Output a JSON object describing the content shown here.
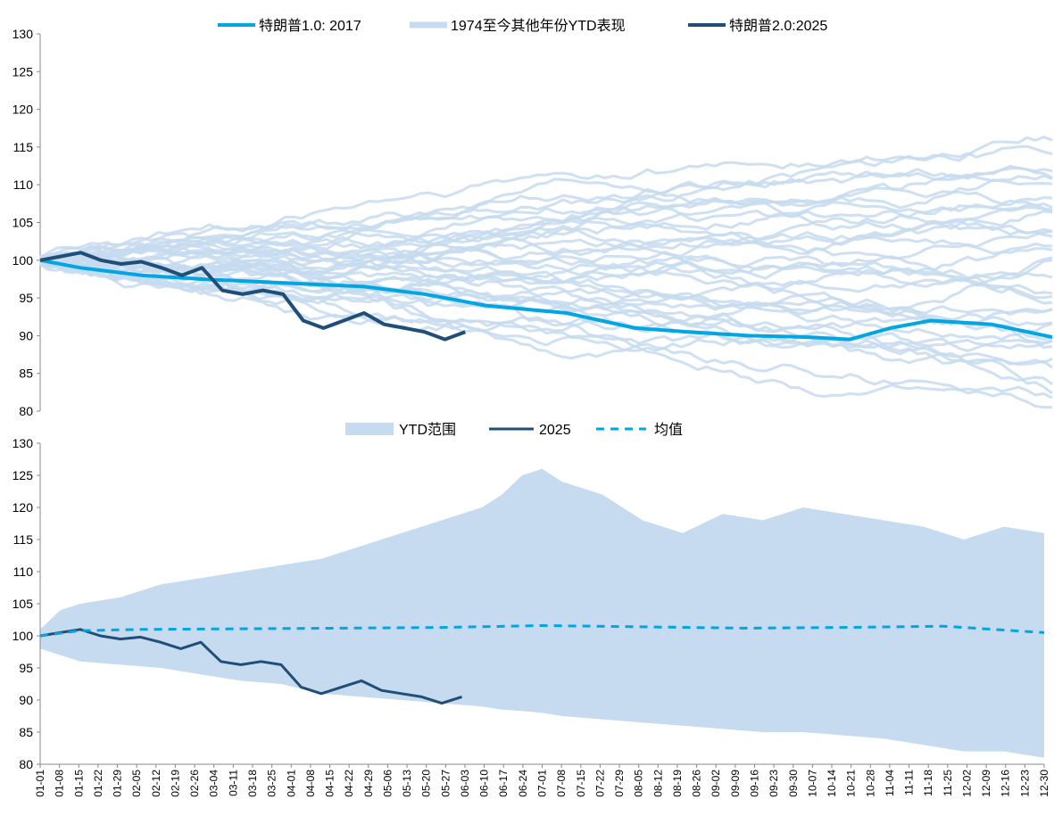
{
  "chart_data": [
    {
      "type": "line",
      "ylim": [
        80,
        130
      ],
      "yticks": [
        80,
        85,
        90,
        95,
        100,
        105,
        110,
        115,
        120,
        125,
        130
      ],
      "legend_position": "top-center",
      "series": [
        {
          "name": "特朗普1.0: 2017",
          "color": "#00a6e3",
          "x": [
            0,
            10,
            25,
            40,
            60,
            80,
            95,
            105,
            110,
            130,
            147,
            160,
            175,
            190,
            200,
            210,
            220,
            235,
            250
          ],
          "values": [
            100,
            99,
            98,
            97.5,
            97,
            96.5,
            95.5,
            94.5,
            94,
            93,
            91,
            90.5,
            90,
            89.8,
            89.5,
            91,
            92,
            91.5,
            89.8
          ]
        },
        {
          "name": "1974至今其他年份YTD表现",
          "color": "#c6dbef"
        },
        {
          "name": "特朗普2.0:2025",
          "color": "#1f4e79",
          "x": [
            0,
            5,
            10,
            15,
            20,
            25,
            30,
            35,
            40,
            45,
            50,
            55,
            60,
            65,
            70,
            75,
            80,
            85,
            90,
            95,
            100,
            105
          ],
          "values": [
            100,
            100.5,
            101,
            100,
            99.5,
            99.8,
            99,
            98,
            99,
            96,
            95.5,
            96,
            95.5,
            92,
            91,
            92,
            93,
            91.5,
            91,
            90.5,
            89.5,
            90.5
          ]
        }
      ]
    },
    {
      "type": "area",
      "ylim": [
        80,
        130
      ],
      "yticks": [
        80,
        85,
        90,
        95,
        100,
        105,
        110,
        115,
        120,
        125,
        130
      ],
      "legend_position": "top-center",
      "x_tick_labels": [
        "01-01",
        "01-08",
        "01-15",
        "01-22",
        "01-29",
        "02-05",
        "02-12",
        "02-19",
        "02-26",
        "03-04",
        "03-11",
        "03-18",
        "03-25",
        "04-01",
        "04-08",
        "04-15",
        "04-22",
        "04-29",
        "05-06",
        "05-13",
        "05-20",
        "05-27",
        "06-03",
        "06-10",
        "06-17",
        "06-24",
        "07-01",
        "07-08",
        "07-15",
        "07-22",
        "07-29",
        "08-05",
        "08-12",
        "08-19",
        "08-26",
        "09-02",
        "09-09",
        "09-16",
        "09-23",
        "09-30",
        "10-07",
        "10-14",
        "10-21",
        "10-28",
        "11-04",
        "11-11",
        "11-18",
        "11-25",
        "12-02",
        "12-09",
        "12-16",
        "12-23",
        "12-30"
      ],
      "range": {
        "name": "YTD范围",
        "color": "#c6dbef",
        "x": [
          0,
          5,
          10,
          20,
          30,
          40,
          50,
          60,
          70,
          80,
          90,
          100,
          110,
          115,
          120,
          125,
          130,
          140,
          150,
          160,
          170,
          180,
          190,
          200,
          210,
          220,
          230,
          240,
          250
        ],
        "upper": [
          101,
          104,
          105,
          106,
          108,
          109,
          110,
          111,
          112,
          114,
          116,
          118,
          120,
          122,
          125,
          126,
          124,
          122,
          118,
          116,
          119,
          118,
          120,
          119,
          118,
          117,
          115,
          117,
          116
        ],
        "lower": [
          98,
          97,
          96,
          95.5,
          95,
          94,
          93,
          92.5,
          91,
          90.5,
          90,
          89.5,
          89,
          88.5,
          88.3,
          88,
          87.5,
          87,
          86.5,
          86,
          85.5,
          85,
          85,
          84.5,
          84,
          83,
          82,
          82,
          81
        ]
      },
      "series": [
        {
          "name": "2025",
          "color": "#1f4e79",
          "x": [
            0,
            5,
            10,
            15,
            20,
            25,
            30,
            35,
            40,
            45,
            50,
            55,
            60,
            65,
            70,
            75,
            80,
            85,
            90,
            95,
            100,
            105
          ],
          "values": [
            100,
            100.5,
            101,
            100,
            99.5,
            99.8,
            99,
            98,
            99,
            96,
            95.5,
            96,
            95.5,
            92,
            91,
            92,
            93,
            91.5,
            91,
            90.5,
            89.5,
            90.5
          ]
        },
        {
          "name": "均值",
          "color": "#00a6e3",
          "dashed": true,
          "x": [
            0,
            10,
            25,
            50,
            75,
            100,
            125,
            150,
            175,
            200,
            225,
            250
          ],
          "values": [
            100,
            100.8,
            101,
            101.1,
            101.2,
            101.3,
            101.6,
            101.4,
            101.2,
            101.3,
            101.5,
            100.5
          ]
        }
      ]
    }
  ]
}
